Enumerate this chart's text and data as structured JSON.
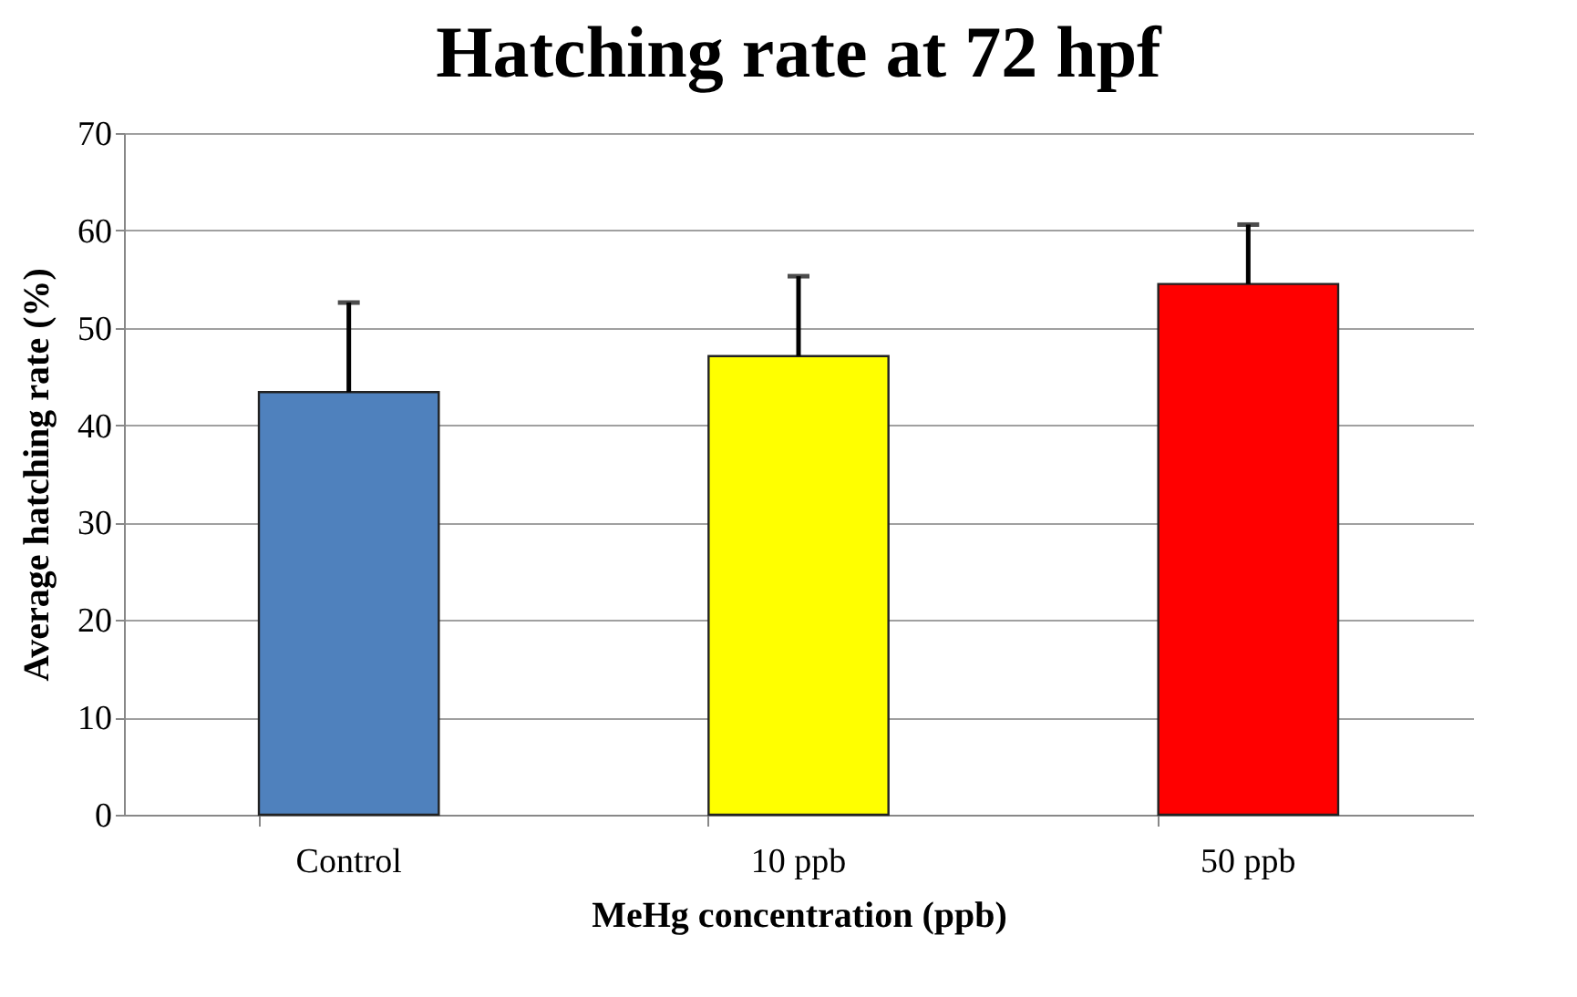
{
  "chart_data": {
    "type": "bar",
    "title": "Hatching rate at 72 hpf",
    "xlabel": "MeHg concentration (ppb)",
    "ylabel": "Average hatching rate (%)",
    "categories": [
      "Control",
      "10 ppb",
      "50 ppb"
    ],
    "values": [
      43.4,
      47.1,
      54.5
    ],
    "colors": [
      "#4f81bd",
      "#ffff00",
      "#ff0000"
    ],
    "errors": [
      [
        43.4,
        52.6
      ],
      [
        47.1,
        55.3
      ],
      [
        54.5,
        60.6
      ]
    ],
    "ylim": [
      0,
      70
    ],
    "yticks": [
      0,
      10,
      20,
      30,
      40,
      50,
      60,
      70
    ],
    "grid": "y"
  }
}
